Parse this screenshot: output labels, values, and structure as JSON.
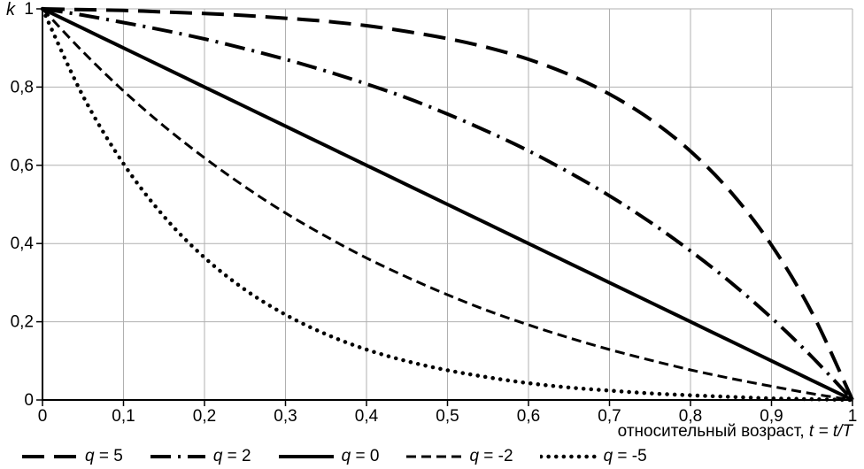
{
  "chart_data": {
    "type": "line",
    "title": "",
    "xlabel_text": "относительный возраст, ",
    "xlabel_math": "t = t/T",
    "ylabel": "k",
    "xlim": [
      0,
      1
    ],
    "ylim": [
      0,
      1
    ],
    "grid": true,
    "legend_position": "bottom",
    "colors": {
      "line": "#000000",
      "grid": "#b0b0b0",
      "background": "#ffffff"
    },
    "x_ticks": [
      0,
      0.1,
      0.2,
      0.3,
      0.4,
      0.5,
      0.6,
      0.7,
      0.8,
      0.9,
      1
    ],
    "x_tick_labels": [
      "0",
      "0,1",
      "0,2",
      "0,3",
      "0,4",
      "0,5",
      "0,6",
      "0,7",
      "0,8",
      "0,9",
      "1"
    ],
    "y_ticks": [
      0,
      0.2,
      0.4,
      0.6,
      0.8,
      1
    ],
    "y_tick_labels": [
      "0",
      "0,2",
      "0,4",
      "0,6",
      "0,8",
      "1"
    ],
    "x": [
      0,
      0.05,
      0.1,
      0.15,
      0.2,
      0.25,
      0.3,
      0.35,
      0.4,
      0.45,
      0.5,
      0.55,
      0.6,
      0.65,
      0.7,
      0.75,
      0.8,
      0.85,
      0.9,
      0.95,
      1
    ],
    "series": [
      {
        "name": "q = 5",
        "dash": "25 11",
        "width": 4,
        "linecap": "butt",
        "y": [
          1,
          0.998,
          0.996,
          0.992,
          0.988,
          0.983,
          0.976,
          0.968,
          0.957,
          0.942,
          0.924,
          0.901,
          0.871,
          0.832,
          0.782,
          0.718,
          0.636,
          0.531,
          0.396,
          0.223,
          0
        ]
      },
      {
        "name": "q = 2",
        "dash": "23 8 3 8",
        "width": 4,
        "linecap": "butt",
        "y": [
          1,
          0.984,
          0.965,
          0.945,
          0.923,
          0.898,
          0.871,
          0.841,
          0.808,
          0.772,
          0.731,
          0.686,
          0.637,
          0.582,
          0.522,
          0.455,
          0.381,
          0.3,
          0.21,
          0.11,
          0
        ]
      },
      {
        "name": "q = 0",
        "dash": "",
        "width": 4,
        "linecap": "butt",
        "y": [
          1,
          0.95,
          0.9,
          0.85,
          0.8,
          0.75,
          0.7,
          0.65,
          0.6,
          0.55,
          0.5,
          0.45,
          0.4,
          0.35,
          0.3,
          0.25,
          0.2,
          0.15,
          0.1,
          0.05,
          0
        ]
      },
      {
        "name": "q = -2",
        "dash": "11 6",
        "width": 3,
        "linecap": "butt",
        "y": [
          1,
          0.89,
          0.79,
          0.7,
          0.619,
          0.545,
          0.478,
          0.418,
          0.363,
          0.314,
          0.269,
          0.228,
          0.192,
          0.159,
          0.129,
          0.102,
          0.077,
          0.055,
          0.035,
          0.016,
          0
        ]
      },
      {
        "name": "q = -5",
        "dash": "0.1 8.5",
        "width": 4.5,
        "linecap": "round",
        "y": [
          1,
          0.777,
          0.604,
          0.469,
          0.364,
          0.282,
          0.218,
          0.168,
          0.129,
          0.099,
          0.076,
          0.058,
          0.043,
          0.032,
          0.024,
          0.017,
          0.012,
          0.008,
          0.004,
          0.002,
          0
        ]
      }
    ]
  }
}
